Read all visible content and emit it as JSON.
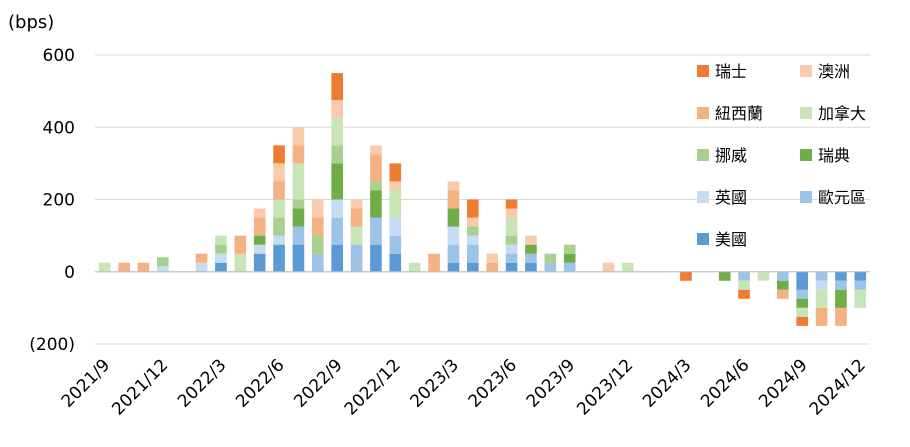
{
  "chart_data": {
    "type": "bar",
    "stacked": true,
    "unit": "(bps)",
    "ylim": [
      -200,
      600
    ],
    "yticks": [
      {
        "value": 600,
        "label": "600",
        "color": "#000000"
      },
      {
        "value": 400,
        "label": "400",
        "color": "#000000"
      },
      {
        "value": 200,
        "label": "200",
        "color": "#000000"
      },
      {
        "value": 0,
        "label": "0",
        "color": "#000000"
      },
      {
        "value": -200,
        "label": "(200)",
        "color": "#e60000"
      }
    ],
    "grid": true,
    "legend_position": "right",
    "x_tick_labels": [
      {
        "index": 0,
        "label": "2021/9"
      },
      {
        "index": 3,
        "label": "2021/12"
      },
      {
        "index": 6,
        "label": "2022/3"
      },
      {
        "index": 9,
        "label": "2022/6"
      },
      {
        "index": 12,
        "label": "2022/9"
      },
      {
        "index": 15,
        "label": "2022/12"
      },
      {
        "index": 18,
        "label": "2023/3"
      },
      {
        "index": 21,
        "label": "2023/6"
      },
      {
        "index": 24,
        "label": "2023/9"
      },
      {
        "index": 27,
        "label": "2023/12"
      },
      {
        "index": 30,
        "label": "2024/3"
      },
      {
        "index": 33,
        "label": "2024/6"
      },
      {
        "index": 36,
        "label": "2024/9"
      },
      {
        "index": 39,
        "label": "2024/12"
      }
    ],
    "categories": [
      "2021/9",
      "2021/10",
      "2021/11",
      "2021/12",
      "2022/1",
      "2022/2",
      "2022/3",
      "2022/4",
      "2022/5",
      "2022/6",
      "2022/7",
      "2022/8",
      "2022/9",
      "2022/10",
      "2022/11",
      "2022/12",
      "2023/1",
      "2023/2",
      "2023/3",
      "2023/4",
      "2023/5",
      "2023/6",
      "2023/7",
      "2023/8",
      "2023/9",
      "2023/10",
      "2023/11",
      "2023/12",
      "2024/1",
      "2024/2",
      "2024/3",
      "2024/4",
      "2024/5",
      "2024/6",
      "2024/7",
      "2024/8",
      "2024/9",
      "2024/10",
      "2024/11",
      "2024/12"
    ],
    "series": [
      {
        "name": "美國",
        "color": "#5b9bd5",
        "values": [
          0,
          0,
          0,
          0,
          0,
          0,
          25,
          0,
          50,
          75,
          75,
          0,
          75,
          0,
          75,
          50,
          0,
          0,
          25,
          25,
          0,
          25,
          25,
          0,
          0,
          0,
          0,
          0,
          0,
          0,
          0,
          0,
          0,
          0,
          0,
          0,
          -50,
          0,
          -25,
          -25
        ]
      },
      {
        "name": "歐元區",
        "color": "#9dc3e6",
        "values": [
          0,
          0,
          0,
          0,
          0,
          0,
          0,
          0,
          0,
          0,
          50,
          50,
          75,
          75,
          75,
          50,
          0,
          0,
          50,
          50,
          0,
          25,
          25,
          25,
          25,
          0,
          0,
          0,
          0,
          0,
          0,
          0,
          0,
          -25,
          0,
          -25,
          -25,
          -25,
          -25,
          -25
        ]
      },
      {
        "name": "英國",
        "color": "#c5dcf2",
        "values": [
          0,
          0,
          0,
          15,
          0,
          25,
          25,
          0,
          25,
          25,
          0,
          0,
          50,
          0,
          0,
          50,
          0,
          0,
          50,
          25,
          0,
          25,
          0,
          0,
          0,
          0,
          0,
          0,
          0,
          0,
          0,
          0,
          0,
          0,
          0,
          0,
          0,
          -25,
          0,
          0
        ]
      },
      {
        "name": "瑞典",
        "color": "#70ad47",
        "values": [
          0,
          0,
          0,
          0,
          0,
          0,
          0,
          0,
          25,
          0,
          50,
          0,
          100,
          0,
          75,
          0,
          0,
          0,
          50,
          0,
          0,
          0,
          25,
          0,
          25,
          0,
          0,
          0,
          0,
          0,
          0,
          0,
          -25,
          0,
          0,
          -25,
          -25,
          0,
          -50,
          0
        ]
      },
      {
        "name": "挪威",
        "color": "#a9d08e",
        "values": [
          0,
          0,
          0,
          25,
          0,
          0,
          25,
          0,
          0,
          50,
          25,
          50,
          50,
          0,
          25,
          0,
          0,
          0,
          0,
          25,
          0,
          25,
          0,
          25,
          25,
          0,
          0,
          0,
          0,
          0,
          0,
          0,
          0,
          0,
          0,
          0,
          0,
          0,
          0,
          0
        ]
      },
      {
        "name": "加拿大",
        "color": "#c9e5b8",
        "values": [
          25,
          0,
          0,
          0,
          0,
          0,
          25,
          50,
          0,
          50,
          100,
          0,
          75,
          50,
          0,
          75,
          25,
          0,
          0,
          0,
          0,
          50,
          0,
          0,
          0,
          0,
          0,
          25,
          0,
          0,
          0,
          0,
          0,
          -25,
          -25,
          0,
          -25,
          -50,
          0,
          -50
        ]
      },
      {
        "name": "紐西蘭",
        "color": "#f4b183",
        "values": [
          0,
          25,
          25,
          0,
          0,
          25,
          0,
          50,
          50,
          50,
          50,
          50,
          0,
          50,
          75,
          0,
          0,
          50,
          50,
          0,
          25,
          0,
          0,
          0,
          0,
          0,
          0,
          0,
          0,
          0,
          0,
          0,
          0,
          0,
          0,
          -25,
          0,
          -50,
          -50,
          0
        ]
      },
      {
        "name": "澳洲",
        "color": "#f8cbad",
        "values": [
          0,
          0,
          0,
          0,
          0,
          0,
          0,
          0,
          25,
          50,
          50,
          50,
          50,
          25,
          25,
          25,
          0,
          0,
          25,
          25,
          25,
          25,
          25,
          0,
          0,
          0,
          25,
          0,
          0,
          0,
          0,
          0,
          0,
          0,
          0,
          0,
          0,
          0,
          0,
          0
        ]
      },
      {
        "name": "瑞士",
        "color": "#ed7d31",
        "values": [
          0,
          0,
          0,
          0,
          0,
          0,
          0,
          0,
          0,
          50,
          0,
          0,
          75,
          0,
          0,
          50,
          0,
          0,
          0,
          50,
          0,
          25,
          0,
          0,
          0,
          0,
          0,
          0,
          0,
          0,
          -25,
          0,
          0,
          -25,
          0,
          0,
          -25,
          0,
          0,
          0
        ]
      }
    ],
    "legend_order": [
      "瑞士",
      "澳洲",
      "紐西蘭",
      "加拿大",
      "挪威",
      "瑞典",
      "英國",
      "歐元區",
      "美國"
    ]
  }
}
